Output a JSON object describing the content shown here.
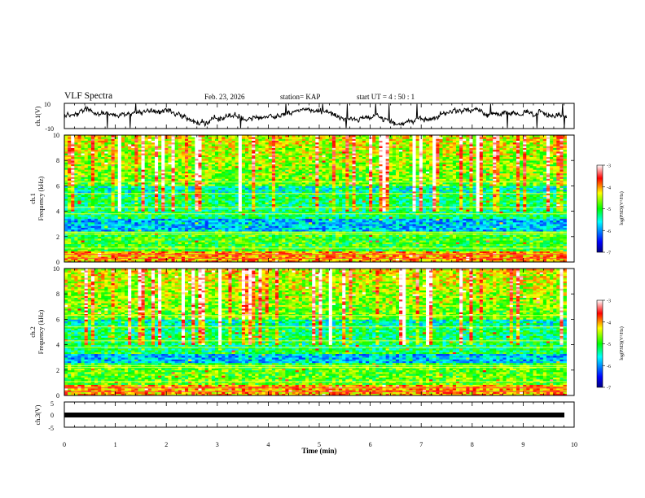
{
  "header": {
    "title": "VLF Spectra",
    "date": "Feb. 23, 2026",
    "station": "station= KAP",
    "start": "start  UT =   4 : 50 : 1"
  },
  "chart_data": [
    {
      "type": "line",
      "panel": "ch1-waveform",
      "ylabel": "ch.1(V)",
      "ylim": [
        -10,
        10
      ],
      "yticks": [
        "10",
        "-10"
      ],
      "x_range_min": [
        0,
        9.85
      ],
      "description_values": "noisy amplitude trace fluctuating mostly between -8 and 8 V"
    },
    {
      "type": "heatmap",
      "panel": "ch1-spectrogram",
      "ylabel": "Frequency (kHz)",
      "channel_label": "ch.1",
      "ylim": [
        0,
        10
      ],
      "yticks": [
        "0",
        "2",
        "4",
        "6",
        "8",
        "10"
      ],
      "colorbar": {
        "label": "log(PSD)(V²/Hz)",
        "range": [
          -7,
          -3
        ],
        "ticks": [
          "-3",
          "-4",
          "-5",
          "-6",
          "-7"
        ],
        "colors": [
          "#000080",
          "#0000ff",
          "#00ffff",
          "#00ff00",
          "#ffff00",
          "#ff0000",
          "#ffffff"
        ]
      }
    },
    {
      "type": "heatmap",
      "panel": "ch2-spectrogram",
      "ylabel": "Frequency (kHz)",
      "channel_label": "ch.2",
      "ylim": [
        0,
        10
      ],
      "yticks": [
        "0",
        "2",
        "4",
        "6",
        "8",
        "10"
      ],
      "colorbar": {
        "label": "log(PSD)(V²/Hz)",
        "range": [
          -7,
          -3
        ],
        "ticks": [
          "-3",
          "-4",
          "-5",
          "-6",
          "-7"
        ],
        "colors": [
          "#000080",
          "#0000ff",
          "#00ffff",
          "#00ff00",
          "#ffff00",
          "#ff0000",
          "#ffffff"
        ]
      }
    },
    {
      "type": "line",
      "panel": "ch3-signal",
      "ylabel": "ch.3(V)",
      "ylim": [
        -5,
        5
      ],
      "yticks": [
        "5",
        "0",
        "-5"
      ],
      "xlabel": "Time (min)",
      "xlim": [
        0,
        10
      ],
      "xticks": [
        "0",
        "1",
        "2",
        "3",
        "4",
        "5",
        "6",
        "7",
        "8",
        "9",
        "10"
      ],
      "description_values": "constant thick band near -0.5 V from 0 to 9.85 min"
    }
  ]
}
